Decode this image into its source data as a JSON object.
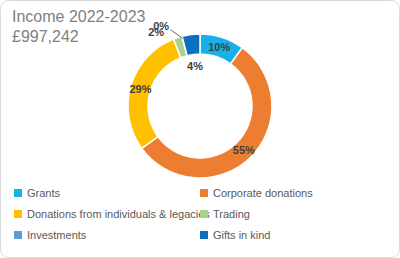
{
  "chart_data": {
    "type": "donut",
    "title": "Income 2022-2023",
    "subtitle": "£997,242",
    "categories": [
      "Grants",
      "Corporate donations",
      "Donations from individuals & legacies",
      "Trading",
      "Investments",
      "Gifts in kind"
    ],
    "values": [
      10,
      55,
      29,
      2,
      0,
      4
    ],
    "value_labels": [
      "10%",
      "55%",
      "29%",
      "2%",
      "0%",
      "4%"
    ],
    "colors": [
      "#17b0e9",
      "#ed7d31",
      "#ffc000",
      "#a9d18e",
      "#5b9bd5",
      "#0a6fc0"
    ],
    "data_labels": true,
    "legend": "bottom"
  }
}
